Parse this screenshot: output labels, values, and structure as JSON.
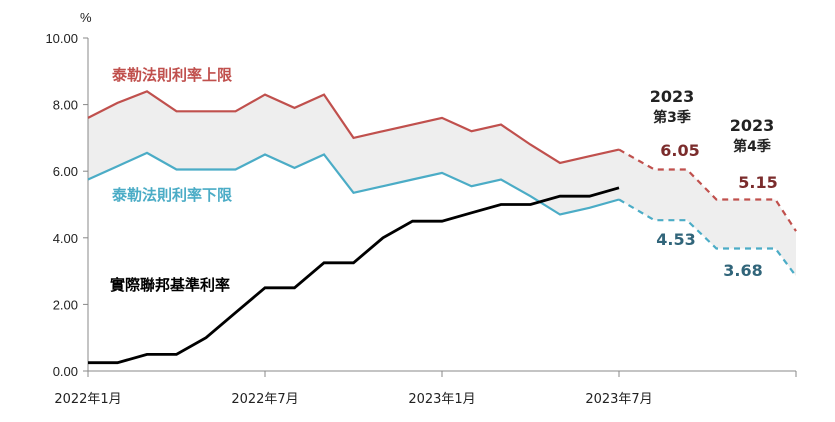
{
  "chart_data": {
    "type": "line",
    "unit": "%",
    "ylim": [
      0,
      10
    ],
    "yticks": [
      "0.00",
      "2.00",
      "4.00",
      "6.00",
      "8.00",
      "10.00"
    ],
    "xticks": [
      "2022年1月",
      "2022年7月",
      "2023年1月",
      "2023年7月"
    ],
    "x": [
      "2022-01",
      "2022-02",
      "2022-03",
      "2022-04",
      "2022-05",
      "2022-06",
      "2022-07",
      "2022-08",
      "2022-09",
      "2022-10",
      "2022-11",
      "2022-12",
      "2023-01",
      "2023-02",
      "2023-03",
      "2023-04",
      "2023-05",
      "2023-06",
      "2023-07"
    ],
    "series": [
      {
        "name": "泰勒法則利率上限",
        "color": "#c0504d",
        "values": [
          7.6,
          8.05,
          8.4,
          7.8,
          7.8,
          7.8,
          8.3,
          7.9,
          8.3,
          7.0,
          7.2,
          7.4,
          7.6,
          7.2,
          7.4,
          6.8,
          6.25,
          6.45,
          6.65
        ]
      },
      {
        "name": "泰勒法則利率下限",
        "color": "#4bacc6",
        "values": [
          5.75,
          6.15,
          6.55,
          6.05,
          6.05,
          6.05,
          6.5,
          6.1,
          6.5,
          5.35,
          5.55,
          5.75,
          5.95,
          5.55,
          5.75,
          5.25,
          4.7,
          4.9,
          5.15
        ]
      },
      {
        "name": "實際聯邦基準利率",
        "color": "#000000",
        "values": [
          0.25,
          0.25,
          0.5,
          0.5,
          1.0,
          1.75,
          2.5,
          2.5,
          3.25,
          3.25,
          4.0,
          4.5,
          4.5,
          4.75,
          5.0,
          5.0,
          5.25,
          5.25,
          5.5
        ]
      }
    ],
    "projections": [
      {
        "period": "2023",
        "quarter": "第3季",
        "upper": "6.05",
        "lower": "4.53"
      },
      {
        "period": "2023",
        "quarter": "第4季",
        "upper": "5.15",
        "lower": "3.68"
      }
    ],
    "projection_values": {
      "upper": [
        6.05,
        5.15,
        4.2
      ],
      "lower": [
        4.53,
        3.68,
        2.85
      ]
    },
    "band_fill": "#eeeeee",
    "label_colors": {
      "upper": "#7b2c2c",
      "lower": "#31657a"
    }
  }
}
